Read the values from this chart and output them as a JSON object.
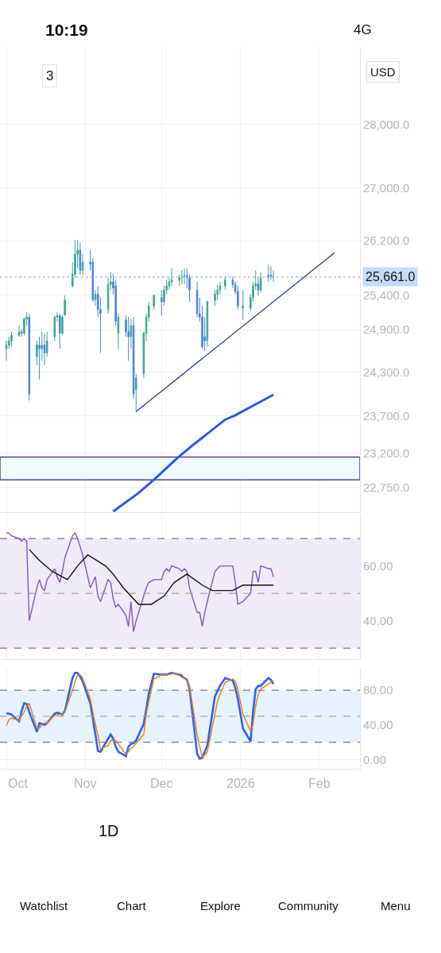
{
  "chart_data": [
    {
      "type": "candlestick",
      "log": true,
      "grid": true,
      "tick_labels": "y",
      "x": [
        "2025-10-01",
        "2025-10-02",
        "2025-10-03",
        "2025-10-06",
        "2025-10-07",
        "2025-10-08",
        "2025-10-09",
        "2025-10-10",
        "2025-10-13",
        "2025-10-14",
        "2025-10-15",
        "2025-10-16",
        "2025-10-17",
        "2025-10-20",
        "2025-10-21",
        "2025-10-22",
        "2025-10-23",
        "2025-10-24",
        "2025-10-27",
        "2025-10-28",
        "2025-10-29",
        "2025-10-30",
        "2025-10-31",
        "2025-11-03",
        "2025-11-04",
        "2025-11-05",
        "2025-11-06",
        "2025-11-07",
        "2025-11-10",
        "2025-11-11",
        "2025-11-12",
        "2025-11-13",
        "2025-11-14",
        "2025-11-17",
        "2025-11-18",
        "2025-11-19",
        "2025-11-20",
        "2025-11-21",
        "2025-11-24",
        "2025-11-25",
        "2025-11-26",
        "2025-11-28",
        "2025-12-01",
        "2025-12-02",
        "2025-12-03",
        "2025-12-04",
        "2025-12-05",
        "2025-12-08",
        "2025-12-09",
        "2025-12-10",
        "2025-12-11",
        "2025-12-12",
        "2025-12-15",
        "2025-12-16",
        "2025-12-17",
        "2025-12-18",
        "2025-12-19",
        "2025-12-22",
        "2025-12-23",
        "2025-12-24",
        "2025-12-26",
        "2025-12-29",
        "2025-12-30",
        "2025-12-31",
        "2026-01-02",
        "2026-01-05",
        "2026-01-06",
        "2026-01-07",
        "2026-01-08",
        "2026-01-09",
        "2026-01-12",
        "2026-01-13",
        "2026-01-14"
      ],
      "ohlc": [
        [
          24630,
          24740,
          24460,
          24680
        ],
        [
          24680,
          24800,
          24630,
          24740
        ],
        [
          24740,
          24870,
          24660,
          24820
        ],
        [
          24820,
          24960,
          24800,
          24870
        ],
        [
          24870,
          24910,
          24800,
          24850
        ],
        [
          24850,
          25080,
          24820,
          25050
        ],
        [
          25050,
          25150,
          24960,
          25080
        ],
        [
          25080,
          25130,
          23910,
          24000
        ],
        [
          24520,
          24740,
          24400,
          24680
        ],
        [
          24680,
          24800,
          24200,
          24630
        ],
        [
          24630,
          24870,
          24460,
          24680
        ],
        [
          24680,
          24850,
          24400,
          24570
        ],
        [
          24570,
          24870,
          24520,
          24740
        ],
        [
          24800,
          25100,
          24740,
          25080
        ],
        [
          25080,
          25150,
          25020,
          25100
        ],
        [
          25100,
          25130,
          24630,
          24850
        ],
        [
          24850,
          25110,
          24820,
          25080
        ],
        [
          25110,
          25390,
          25100,
          25320
        ],
        [
          25530,
          25880,
          25510,
          25700
        ],
        [
          25700,
          26210,
          25650,
          26000
        ],
        [
          26000,
          26210,
          25790,
          26060
        ],
        [
          26060,
          26170,
          25700,
          25760
        ],
        [
          25760,
          26000,
          25700,
          25880
        ],
        [
          25880,
          26060,
          25760,
          25850
        ],
        [
          25880,
          25940,
          25300,
          25330
        ],
        [
          25330,
          25470,
          25240,
          25410
        ],
        [
          25410,
          25530,
          25080,
          25190
        ],
        [
          25190,
          25360,
          24570,
          25130
        ],
        [
          25190,
          25650,
          25130,
          25550
        ],
        [
          25550,
          25730,
          25470,
          25590
        ],
        [
          25590,
          25700,
          25410,
          25500
        ],
        [
          25530,
          25620,
          24960,
          25020
        ],
        [
          24850,
          25130,
          24620,
          25080
        ],
        [
          25040,
          25100,
          24800,
          24870
        ],
        [
          24870,
          25080,
          24460,
          24800
        ],
        [
          24800,
          25050,
          24630,
          24960
        ],
        [
          24960,
          25080,
          23940,
          24000
        ],
        [
          24060,
          24280,
          23750,
          24220
        ],
        [
          24280,
          24870,
          24220,
          24850
        ],
        [
          24850,
          25130,
          24740,
          25080
        ],
        [
          25080,
          25300,
          25020,
          25240
        ],
        [
          25240,
          25410,
          25190,
          25390
        ],
        [
          25360,
          25470,
          25100,
          25300
        ],
        [
          25300,
          25530,
          25240,
          25470
        ],
        [
          25470,
          25620,
          25410,
          25530
        ],
        [
          25530,
          25650,
          25470,
          25590
        ],
        [
          25590,
          25790,
          25530,
          25620
        ],
        [
          25620,
          25700,
          25530,
          25650
        ],
        [
          25650,
          25760,
          25550,
          25670
        ],
        [
          25670,
          25790,
          25560,
          25680
        ],
        [
          25680,
          25790,
          25500,
          25650
        ],
        [
          25650,
          25700,
          25300,
          25470
        ],
        [
          25470,
          25590,
          25080,
          25130
        ],
        [
          25130,
          25360,
          25020,
          25080
        ],
        [
          25080,
          25240,
          24630,
          24660
        ],
        [
          24800,
          25080,
          24600,
          24740
        ],
        [
          24740,
          25320,
          24660,
          25300
        ],
        [
          25320,
          25470,
          25240,
          25410
        ],
        [
          25410,
          25550,
          25320,
          25470
        ],
        [
          25470,
          25590,
          25410,
          25530
        ],
        [
          25530,
          25670,
          25470,
          25620
        ],
        [
          25620,
          25670,
          25500,
          25550
        ],
        [
          25550,
          25590,
          25410,
          25450
        ],
        [
          25450,
          25530,
          25190,
          25240
        ],
        [
          25240,
          25470,
          25040,
          25210
        ],
        [
          25210,
          25410,
          25160,
          25360
        ],
        [
          25360,
          25590,
          25300,
          25530
        ],
        [
          25530,
          25760,
          25470,
          25560
        ],
        [
          25560,
          25650,
          25390,
          25470
        ],
        [
          25470,
          25730,
          25430,
          25650
        ],
        [
          25650,
          25840,
          25590,
          25690
        ],
        [
          25690,
          25820,
          25620,
          25670
        ],
        [
          25670,
          25760,
          25590,
          25661
        ]
      ],
      "colors": [
        "#3aa88f",
        "#3aa88f",
        "#3aa88f",
        "#3aa88f",
        "#4a80e0",
        "#3aa88f",
        "#3aa88f",
        "#4a80e0",
        "#3aa88f",
        "#4a80e0",
        "#3aa88f",
        "#4a80e0",
        "#3aa88f",
        "#3aa88f",
        "#3aa88f",
        "#4a80e0",
        "#3aa88f",
        "#3aa88f",
        "#3aa88f",
        "#3aa88f",
        "#3aa88f",
        "#4a80e0",
        "#3aa88f",
        "#4a80e0",
        "#4a80e0",
        "#3aa88f",
        "#4a80e0",
        "#4a80e0",
        "#3aa88f",
        "#3aa88f",
        "#4a80e0",
        "#4a80e0",
        "#3aa88f",
        "#4a80e0",
        "#4a80e0",
        "#3aa88f",
        "#4a80e0",
        "#3aa88f",
        "#3aa88f",
        "#3aa88f",
        "#3aa88f",
        "#3aa88f",
        "#4a80e0",
        "#3aa88f",
        "#3aa88f",
        "#3aa88f",
        "#3aa88f",
        "#3aa88f",
        "#3aa88f",
        "#3aa88f",
        "#4a80e0",
        "#4a80e0",
        "#4a80e0",
        "#4a80e0",
        "#4a80e0",
        "#4a80e0",
        "#3aa88f",
        "#3aa88f",
        "#3aa88f",
        "#3aa88f",
        "#3aa88f",
        "#4a80e0",
        "#4a80e0",
        "#4a80e0",
        "#4a80e0",
        "#3aa88f",
        "#3aa88f",
        "#3aa88f",
        "#4a80e0",
        "#3aa88f",
        "#3aa88f",
        "#4a80e0",
        "#4a80e0"
      ],
      "series": [
        {
          "type": "line",
          "color": "#2b3990",
          "x": [
            "2025-11-21",
            "2026-02-07"
          ],
          "values": [
            23760,
            26020
          ]
        },
        {
          "type": "line",
          "color": "#2f5bdc",
          "x": [
            "2025-11-12",
            "2025-11-22",
            "2025-11-28",
            "2025-12-07",
            "2025-12-13",
            "2025-12-26",
            "2025-12-30",
            "2026-01-14"
          ],
          "values": [
            22440,
            22680,
            22850,
            23130,
            23300,
            23650,
            23710,
            23990
          ]
        }
      ],
      "ref_lines": [
        {
          "axis": "y",
          "value": 25661,
          "label": "25,661.0",
          "color": "#9db8e8",
          "line_style": "dotted"
        }
      ],
      "bands": [
        {
          "axis": "y",
          "from": 22850,
          "to": 23150,
          "color": "#eefbfb"
        }
      ],
      "xlim": [
        "2025-09-28T12:00",
        "2026-02-17"
      ],
      "xticks": [
        {
          "value": "2025-10-01",
          "label": null
        },
        {
          "value": "2025-11-01",
          "label": null
        },
        {
          "value": "2025-12-01",
          "label": null
        },
        {
          "value": "2026-01-01",
          "label": null
        },
        {
          "value": "2026-02-01",
          "label": null
        }
      ],
      "ylim": [
        22430,
        29260
      ],
      "yticks": [
        {
          "value": 28000,
          "label": "28,000.0"
        },
        {
          "value": 27000,
          "label": "27,000.0"
        },
        {
          "value": 26200,
          "label": "26,200.0"
        },
        {
          "value": 25400,
          "label": "25,400.0"
        },
        {
          "value": 24900,
          "label": "24,900.0"
        },
        {
          "value": 24300,
          "label": "24,300.0"
        },
        {
          "value": 23700,
          "label": "23,700.0"
        },
        {
          "value": 23200,
          "label": "23,200.0"
        },
        {
          "value": 22750,
          "label": "22,750.0"
        }
      ],
      "annotations": [
        "10:19",
        "4G",
        "USD",
        "3",
        "1D",
        "Watchlist",
        "Chart",
        "Explore",
        "Community",
        "Menu"
      ]
    },
    {
      "type": "line",
      "grid": true,
      "tick_labels": "y",
      "x": [
        "2025-10-01",
        "2025-10-02",
        "2025-10-03",
        "2025-10-06",
        "2025-10-07",
        "2025-10-08",
        "2025-10-09",
        "2025-10-10",
        "2025-10-13",
        "2025-10-14",
        "2025-10-15",
        "2025-10-16",
        "2025-10-17",
        "2025-10-20",
        "2025-10-21",
        "2025-10-22",
        "2025-10-23",
        "2025-10-24",
        "2025-10-27",
        "2025-10-28",
        "2025-10-29",
        "2025-10-30",
        "2025-10-31",
        "2025-11-03",
        "2025-11-04",
        "2025-11-05",
        "2025-11-06",
        "2025-11-07",
        "2025-11-10",
        "2025-11-11",
        "2025-11-12",
        "2025-11-13",
        "2025-11-14",
        "2025-11-17",
        "2025-11-18",
        "2025-11-19",
        "2025-11-20",
        "2025-11-21",
        "2025-11-24",
        "2025-11-25",
        "2025-11-26",
        "2025-11-28",
        "2025-12-01",
        "2025-12-02",
        "2025-12-03",
        "2025-12-04",
        "2025-12-05",
        "2025-12-08",
        "2025-12-09",
        "2025-12-10",
        "2025-12-11",
        "2025-12-12",
        "2025-12-15",
        "2025-12-16",
        "2025-12-17",
        "2025-12-18",
        "2025-12-19",
        "2025-12-22",
        "2025-12-23",
        "2025-12-24",
        "2025-12-26",
        "2025-12-29",
        "2025-12-30",
        "2025-12-31",
        "2026-01-02",
        "2026-01-05",
        "2026-01-06",
        "2026-01-07",
        "2026-01-08",
        "2026-01-09",
        "2026-01-12",
        "2026-01-13",
        "2026-01-14"
      ],
      "series": [
        {
          "color": "#7e57c2",
          "values": [
            72,
            72,
            71,
            70,
            69,
            70,
            69,
            40,
            52,
            55,
            52,
            51,
            55,
            59,
            56,
            54,
            58,
            63,
            71,
            72,
            70,
            67,
            64,
            52,
            54,
            56,
            49,
            47,
            55,
            54,
            48,
            45,
            46,
            42,
            38,
            47,
            36,
            40,
            49,
            52,
            54,
            55,
            55,
            58,
            59,
            58,
            60,
            59,
            58,
            59,
            58,
            52,
            43,
            43,
            38,
            43,
            47,
            58,
            59,
            60,
            60,
            60,
            54,
            46,
            47,
            50,
            58,
            58,
            54,
            60,
            59,
            59,
            56
          ]
        },
        {
          "color": "#111111",
          "x": [
            "2025-10-10",
            "2025-10-14",
            "2025-10-19",
            "2025-10-25",
            "2025-10-29",
            "2025-11-02",
            "2025-11-09",
            "2025-11-12",
            "2025-11-16",
            "2025-11-22",
            "2025-11-27",
            "2025-12-02",
            "2025-12-06",
            "2025-12-11",
            "2025-12-17",
            "2025-12-21",
            "2025-12-26",
            "2025-12-29",
            "2026-01-02",
            "2026-01-14"
          ],
          "values": [
            66,
            62,
            58,
            55,
            60,
            64,
            60,
            57,
            52,
            46,
            46,
            49,
            54,
            57,
            53,
            51,
            51,
            51,
            53,
            53
          ]
        }
      ],
      "ref_lines": [
        {
          "axis": "y",
          "value": 70,
          "color": "#7a7a7a",
          "line_style": "dashed"
        },
        {
          "axis": "y",
          "value": 50,
          "color": "#a8a8a8",
          "line_style": "dashed"
        },
        {
          "axis": "y",
          "value": 30,
          "color": "#7a7a7a",
          "line_style": "dashed"
        }
      ],
      "bands": [
        {
          "axis": "y",
          "from": 30,
          "to": 70,
          "color": "#f0ebf8"
        }
      ],
      "xlim": [
        "2025-09-28T12:00",
        "2026-02-17"
      ],
      "xticks": [
        {
          "value": "2025-10-01",
          "label": null
        },
        {
          "value": "2025-11-01",
          "label": null
        },
        {
          "value": "2025-12-01",
          "label": null
        },
        {
          "value": "2026-01-01",
          "label": null
        },
        {
          "value": "2026-02-01",
          "label": null
        }
      ],
      "ylim": [
        26,
        78.7
      ],
      "yticks": [
        {
          "value": 60,
          "label": "60.00"
        },
        {
          "value": 40,
          "label": "40.00"
        }
      ]
    },
    {
      "type": "line",
      "grid": true,
      "x": [
        "2025-10-01",
        "2025-10-02",
        "2025-10-03",
        "2025-10-06",
        "2025-10-07",
        "2025-10-08",
        "2025-10-09",
        "2025-10-10",
        "2025-10-13",
        "2025-10-14",
        "2025-10-15",
        "2025-10-16",
        "2025-10-17",
        "2025-10-20",
        "2025-10-21",
        "2025-10-22",
        "2025-10-23",
        "2025-10-24",
        "2025-10-27",
        "2025-10-28",
        "2025-10-29",
        "2025-10-30",
        "2025-10-31",
        "2025-11-03",
        "2025-11-04",
        "2025-11-05",
        "2025-11-06",
        "2025-11-07",
        "2025-11-10",
        "2025-11-11",
        "2025-11-12",
        "2025-11-13",
        "2025-11-14",
        "2025-11-17",
        "2025-11-18",
        "2025-11-19",
        "2025-11-20",
        "2025-11-21",
        "2025-11-24",
        "2025-11-25",
        "2025-11-26",
        "2025-11-28",
        "2025-12-01",
        "2025-12-02",
        "2025-12-03",
        "2025-12-04",
        "2025-12-05",
        "2025-12-08",
        "2025-12-09",
        "2025-12-10",
        "2025-12-11",
        "2025-12-12",
        "2025-12-15",
        "2025-12-16",
        "2025-12-17",
        "2025-12-18",
        "2025-12-19",
        "2025-12-22",
        "2025-12-23",
        "2025-12-24",
        "2025-12-26",
        "2025-12-29",
        "2025-12-30",
        "2025-12-31",
        "2026-01-02",
        "2026-01-05",
        "2026-01-06",
        "2026-01-07",
        "2026-01-08",
        "2026-01-09",
        "2026-01-12",
        "2026-01-13",
        "2026-01-14"
      ],
      "series": [
        {
          "color": "#2962ff",
          "values": [
            53,
            53,
            52,
            44,
            56,
            65,
            64,
            55,
            32,
            42,
            41,
            40,
            42,
            53,
            54,
            53,
            52,
            56,
            94,
            100,
            100,
            96,
            90,
            65,
            47,
            29,
            10,
            9,
            24,
            29,
            24,
            15,
            9,
            4,
            15,
            18,
            19,
            22,
            41,
            58,
            76,
            99,
            98,
            98,
            98,
            99,
            100,
            98,
            96,
            94,
            92,
            82,
            7,
            1,
            2,
            9,
            16,
            73,
            79,
            85,
            94,
            91,
            83,
            70,
            36,
            21,
            56,
            81,
            85,
            85,
            94,
            92,
            87
          ]
        },
        {
          "color": "#f57c00",
          "values": [
            39,
            46,
            48,
            45,
            50,
            55,
            61,
            65,
            36,
            36,
            41,
            42,
            42,
            51,
            51,
            52,
            52,
            55,
            80,
            90,
            98,
            98,
            94,
            70,
            55,
            41,
            28,
            12,
            16,
            22,
            23,
            22,
            18,
            6,
            9,
            13,
            15,
            19,
            29,
            52,
            67,
            93,
            98,
            98,
            98,
            98,
            99,
            99,
            98,
            94,
            91,
            85,
            29,
            15,
            3,
            5,
            9,
            53,
            67,
            75,
            89,
            93,
            90,
            81,
            52,
            33,
            41,
            62,
            75,
            81,
            87,
            89,
            91
          ]
        }
      ],
      "ref_lines": [
        {
          "axis": "y",
          "value": 80,
          "color": "#7a7a7a",
          "line_style": "dashed"
        },
        {
          "axis": "y",
          "value": 50,
          "color": "#a8a8a8",
          "line_style": "dashed"
        },
        {
          "axis": "y",
          "value": 20,
          "color": "#7a7a7a",
          "line_style": "dashed"
        }
      ],
      "bands": [
        {
          "axis": "y",
          "from": 20,
          "to": 80,
          "color": "#e6f2fd"
        }
      ],
      "xlim": [
        "2025-09-28T12:00",
        "2026-02-17"
      ],
      "xticks": [
        {
          "value": "2025-10-01",
          "label": "Oct"
        },
        {
          "value": "2025-11-01",
          "label": "Nov"
        },
        {
          "value": "2025-12-01",
          "label": "Dec"
        },
        {
          "value": "2026-01-01",
          "label": "2026"
        },
        {
          "value": "2026-02-01",
          "label": "Feb"
        }
      ],
      "ylim": [
        -10.6,
        104.8
      ],
      "yticks": [
        {
          "value": 80,
          "label": "80.00"
        },
        {
          "value": 40,
          "label": "40.00"
        },
        {
          "value": 0,
          "label": "0.00"
        }
      ]
    }
  ]
}
